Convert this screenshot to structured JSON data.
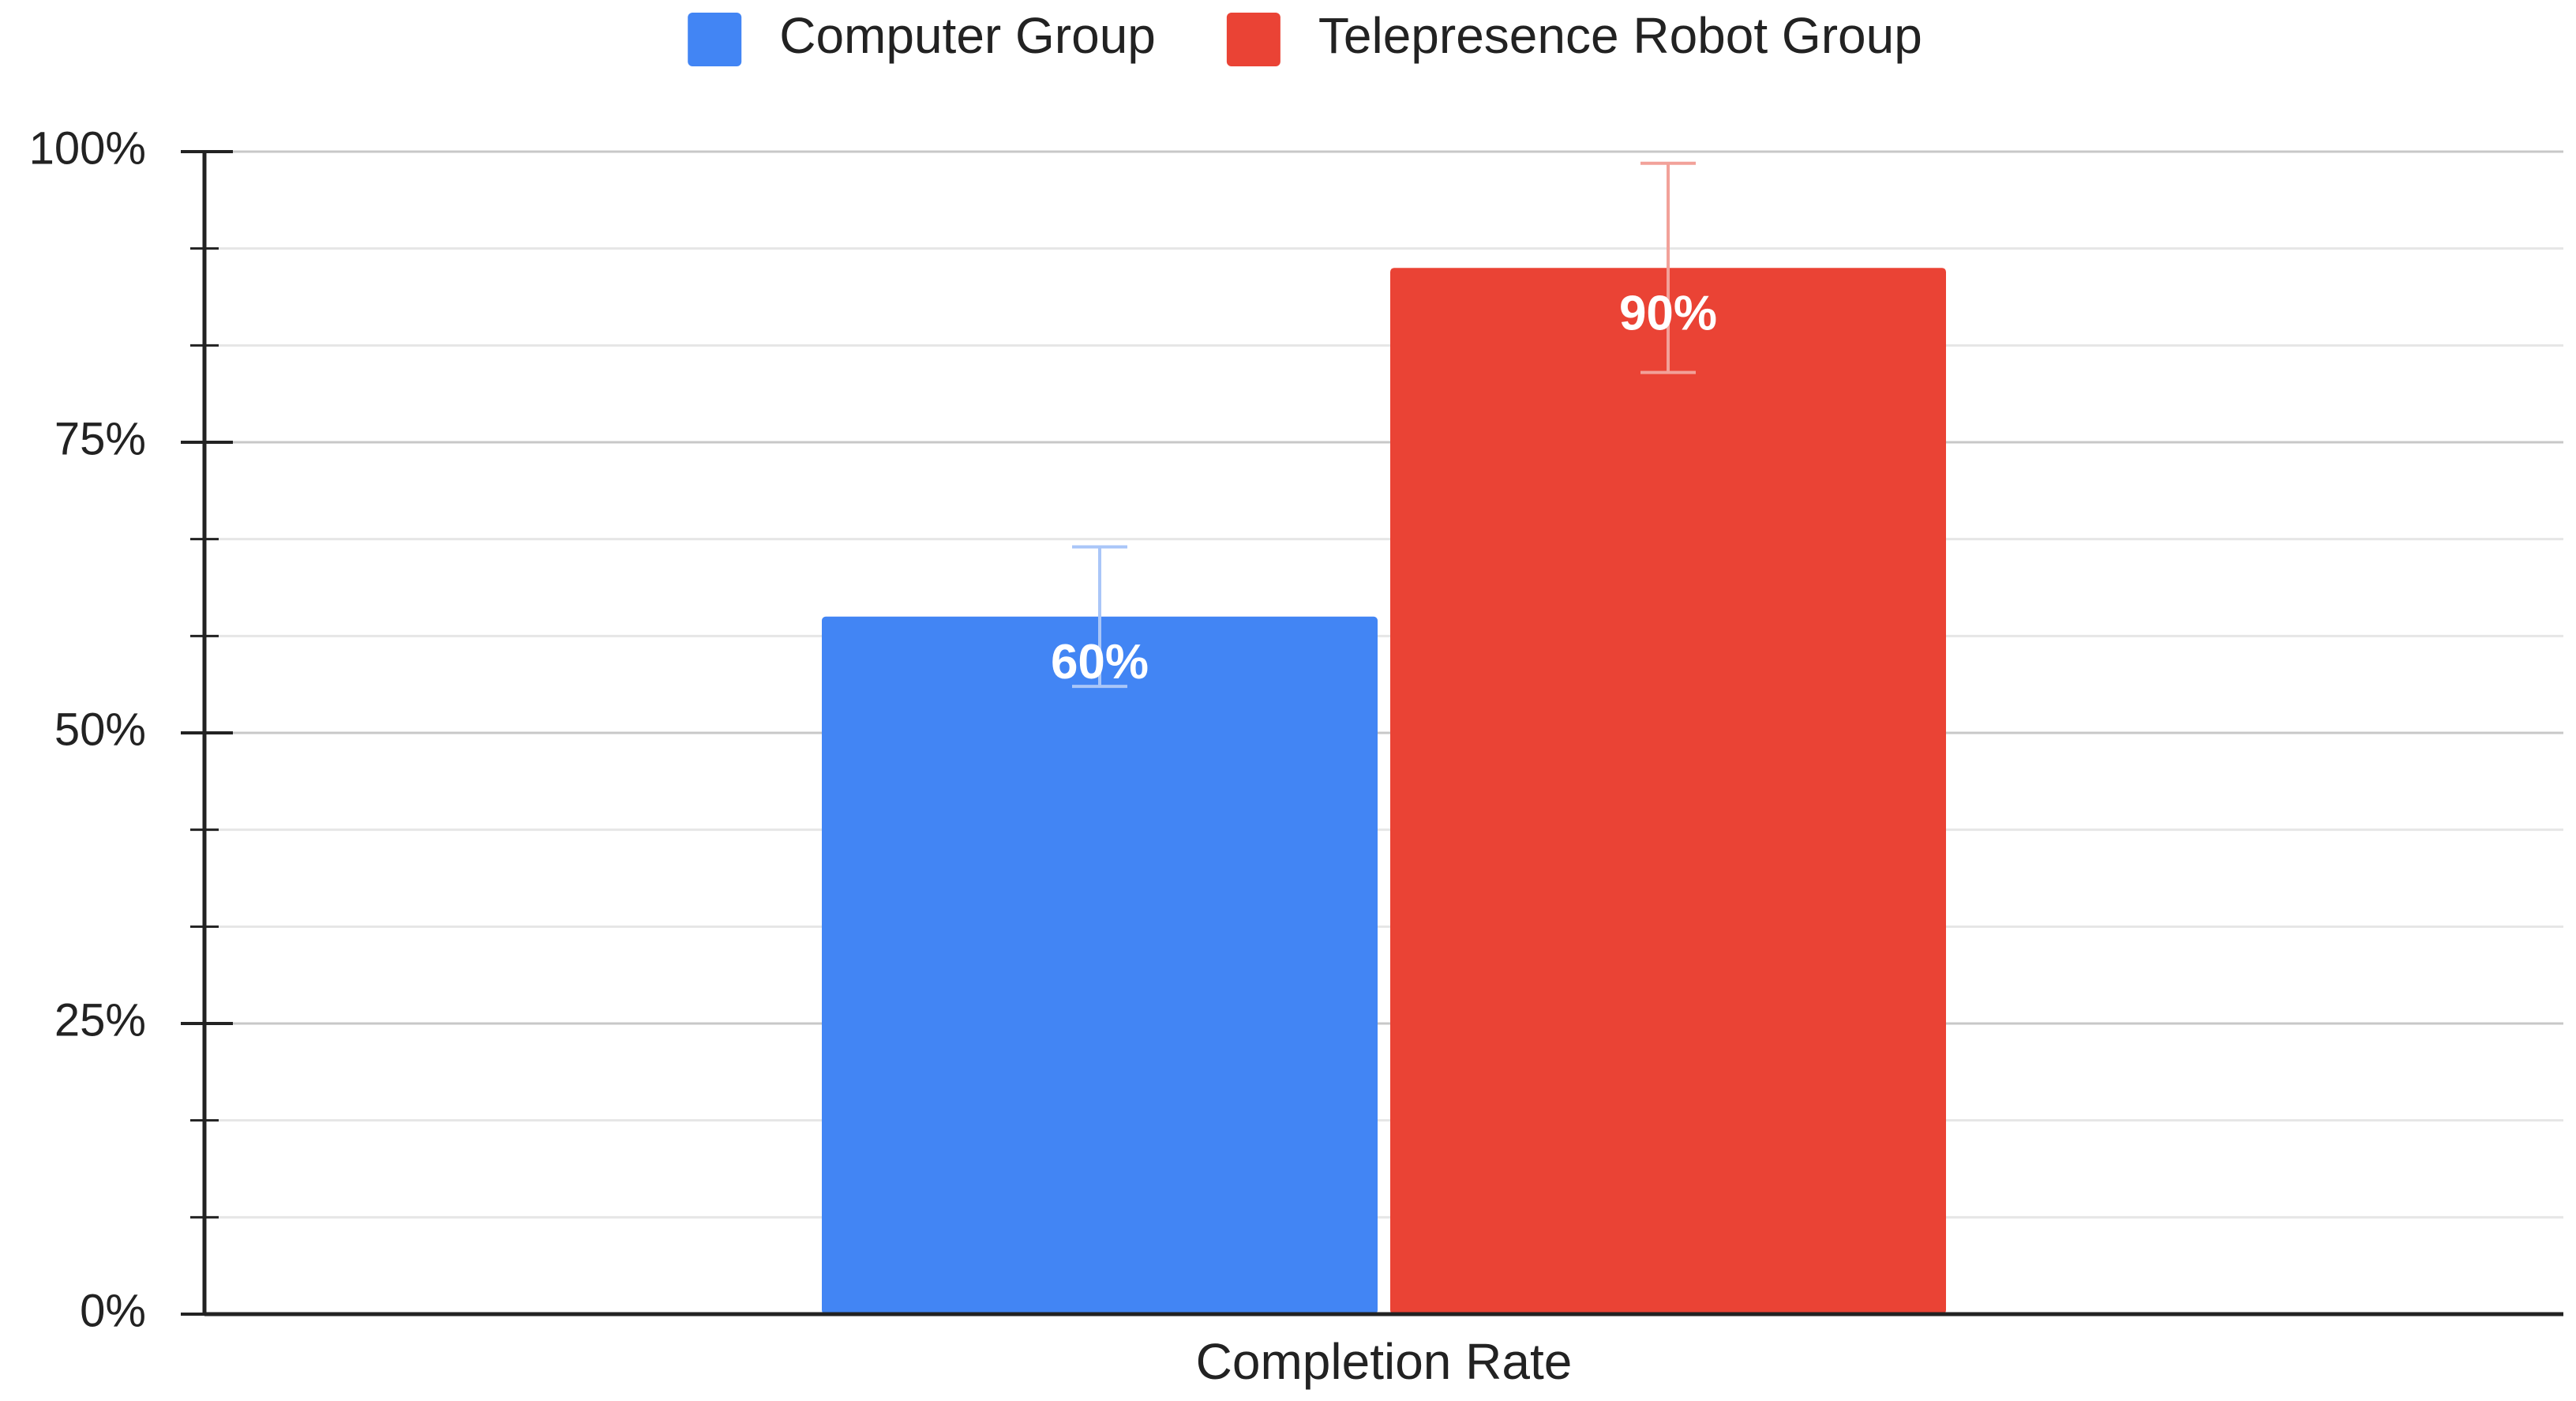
{
  "chart_data": {
    "type": "bar",
    "categories": [
      "Completion Rate"
    ],
    "series": [
      {
        "name": "Computer Group",
        "color": "#4285f4",
        "error_color": "#a9c6f8",
        "values": [
          60
        ],
        "value_labels": [
          "60%"
        ],
        "errors": [
          6
        ]
      },
      {
        "name": "Telepresence Robot Group",
        "color": "#ea4335",
        "error_color": "#f2a199",
        "values": [
          90
        ],
        "value_labels": [
          "90%"
        ],
        "errors": [
          9
        ]
      }
    ],
    "ylim": [
      0,
      100
    ],
    "yticks": [
      {
        "value": 0,
        "label": "0%"
      },
      {
        "value": 25,
        "label": "25%"
      },
      {
        "value": 50,
        "label": "50%"
      },
      {
        "value": 75,
        "label": "75%"
      },
      {
        "value": 100,
        "label": "100%"
      }
    ],
    "grid": true,
    "minor_grid_divisions": 3,
    "legend": "top"
  }
}
